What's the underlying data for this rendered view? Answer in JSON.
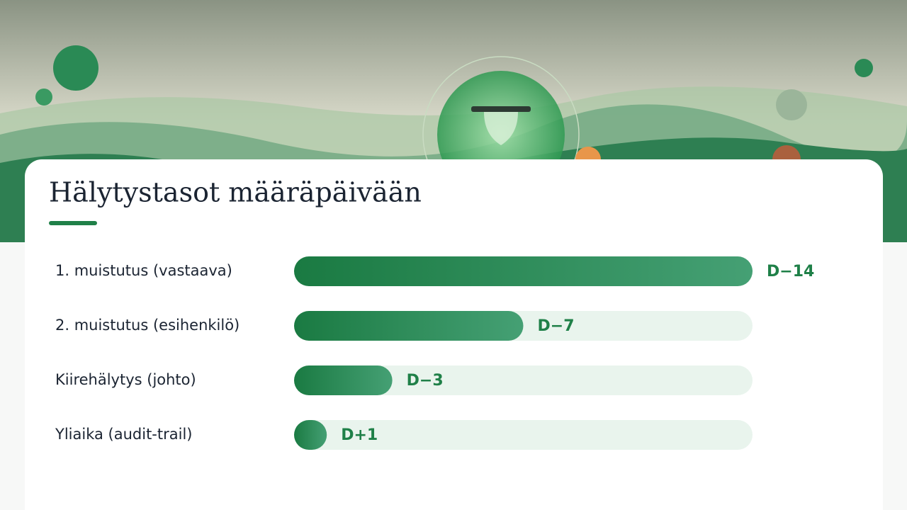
{
  "chart_data": {
    "type": "bar",
    "orientation": "horizontal",
    "title": "Hälytystasot määräpäivään",
    "categories": [
      "1. muistutus (vastaava)",
      "2. muistutus (esihenkilö)",
      "Kiirehälytys (johto)",
      "Yliaika (audit-trail)"
    ],
    "values": [
      14,
      7,
      3,
      1
    ],
    "value_labels": [
      "D−14",
      "D−7",
      "D−3",
      "D+1"
    ],
    "xlim": [
      0,
      14
    ],
    "color": "#1f8048"
  }
}
